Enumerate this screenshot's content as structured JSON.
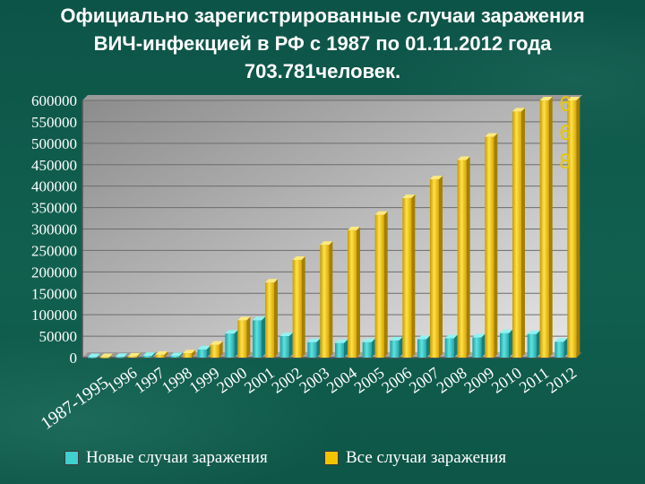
{
  "slide": {
    "title": "Официально зарегистрированные случаи заражения ВИЧ-инфекцией в РФ с 1987 по 01.11.2012 года 703.781человек."
  },
  "chart_data": {
    "type": "bar",
    "title": "Официально зарегистрированные случаи заражения ВИЧ-инфекцией в РФ с 1987 по 01.11.2012 года 703.781человек.",
    "categories": [
      "1987-1995",
      "1996",
      "1997",
      "1998",
      "1999",
      "2000",
      "2001",
      "2002",
      "2003",
      "2004",
      "2005",
      "2006",
      "2007",
      "2008",
      "2009",
      "2010",
      "2011",
      "2012"
    ],
    "series": [
      {
        "name": "Новые случаи заражения",
        "color": "#3fd0cf",
        "values": [
          1000,
          1500,
          4000,
          3500,
          19000,
          56000,
          87000,
          50000,
          36000,
          34000,
          36000,
          40000,
          43000,
          45000,
          47000,
          57000,
          55000,
          37000
        ]
      },
      {
        "name": "Все случаи заражения",
        "color": "#f5c400",
        "values": [
          1000,
          2500,
          6500,
          10000,
          30000,
          87000,
          175000,
          228000,
          263000,
          297000,
          333000,
          372000,
          416000,
          461000,
          515000,
          574000,
          600000,
          600000
        ]
      }
    ],
    "ylim": [
      0,
      600000
    ],
    "yticks": [
      "0",
      "50000",
      "100000",
      "150000",
      "200000",
      "250000",
      "300000",
      "350000",
      "400000",
      "450000",
      "500000",
      "550000",
      "600000"
    ],
    "xlabel": "",
    "ylabel": "",
    "legend_position": "bottom",
    "grid": true,
    "annotation": [
      "6",
      "6",
      "8"
    ]
  }
}
